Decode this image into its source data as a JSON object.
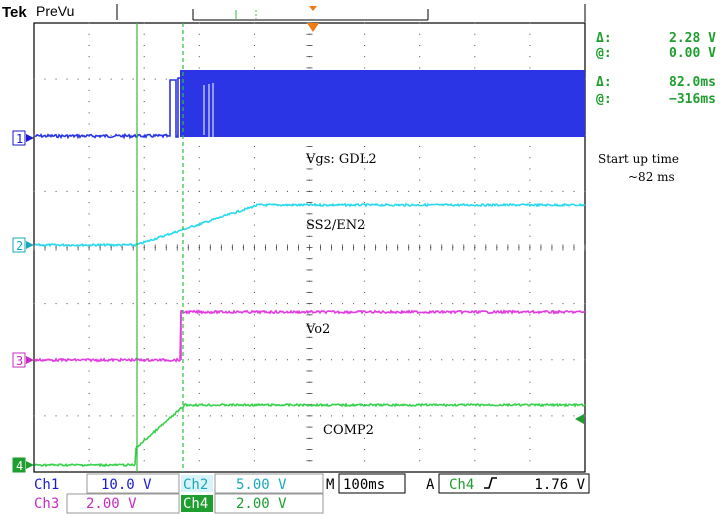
{
  "header": {
    "brand": "Tek",
    "mode": "PreVu"
  },
  "cursors": {
    "delta_v_label": "Δ:",
    "delta_v_value": "2.28 V",
    "at_v_label": "@:",
    "at_v_value": "0.00 V",
    "delta_t_label": "Δ:",
    "delta_t_value": "82.0ms",
    "at_t_label": "@:",
    "at_t_value": "−316ms"
  },
  "annotation": {
    "line1": "Start up time",
    "line2": "~82 ms"
  },
  "channels": [
    {
      "marker": "1",
      "name": "Vgs: GDL2",
      "color": "#2b35e6"
    },
    {
      "marker": "2",
      "name": "SS2/EN2",
      "color": "#27d9ee"
    },
    {
      "marker": "3",
      "name": "Vo2",
      "color": "#e23ce0"
    },
    {
      "marker": "4",
      "name": "COMP2",
      "color": "#36d24a"
    }
  ],
  "readout": {
    "ch1_label": "Ch1",
    "ch1_scale": "10.0 V",
    "ch2_label": "Ch2",
    "ch2_scale": "5.00 V",
    "ch3_label": "Ch3",
    "ch3_scale": "2.00 V",
    "ch4_label": "Ch4",
    "ch4_scale": "2.00 V",
    "m_label": "M",
    "timebase": "100ms",
    "a_label": "A",
    "trig_source": "Ch4",
    "trig_slope_icon": "rising-edge-icon",
    "trig_level": "1.76 V"
  },
  "colors": {
    "grid": "#000000",
    "cursor": "#2fbf3a",
    "trigger": "#f07a14",
    "label_blue": "#1a1ad0",
    "ch2_label_bg": "#d8f4f8",
    "ch4_label_bg": "#1e9e2e"
  }
}
